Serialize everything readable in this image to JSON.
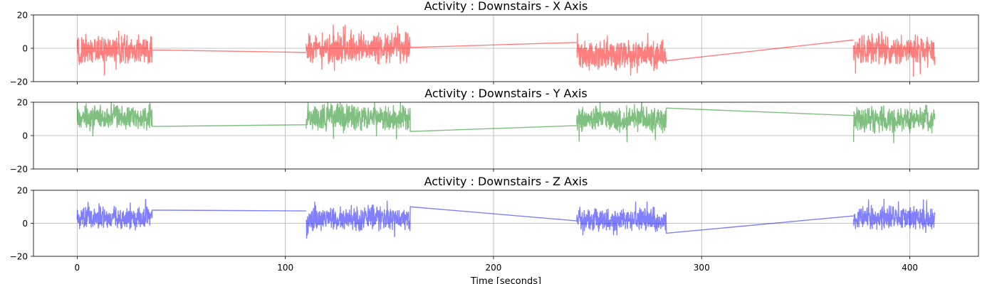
{
  "chart_data": [
    {
      "type": "line",
      "title": "Activity : Downstairs - X Axis",
      "series": [
        {
          "color": "#ff0000",
          "alpha": 0.5
        }
      ],
      "xlim": [
        -21,
        433
      ],
      "ylim": [
        -20,
        20
      ],
      "x_ticks": [
        0,
        100,
        200,
        300,
        400
      ],
      "y_ticks": [
        -20,
        0,
        20
      ],
      "y_tick_labels": [
        "−20",
        "0",
        "20"
      ],
      "grid": true,
      "segments": [
        {
          "x0": 0,
          "x1": 36,
          "center": -1,
          "amp": 10,
          "min": -16,
          "max": 13
        },
        {
          "x0": 110,
          "x1": 160,
          "center": 0,
          "amp": 10,
          "min": -15,
          "max": 17
        },
        {
          "x0": 240,
          "x1": 283,
          "center": -4,
          "amp": 10,
          "min": -19,
          "max": 12
        },
        {
          "x0": 373,
          "x1": 412,
          "center": -1,
          "amp": 10,
          "min": -19,
          "max": 15
        }
      ],
      "links": [
        {
          "x0": 36,
          "y0": -1,
          "x1": 110,
          "y1": -2.5
        },
        {
          "x0": 160,
          "y0": 0.5,
          "x1": 240,
          "y1": 3.5
        },
        {
          "x0": 283,
          "y0": -7.5,
          "x1": 373,
          "y1": 5
        }
      ]
    },
    {
      "type": "line",
      "title": "Activity : Downstairs - Y Axis",
      "series": [
        {
          "color": "#008000",
          "alpha": 0.5
        }
      ],
      "xlim": [
        -21,
        433
      ],
      "ylim": [
        -20,
        20
      ],
      "x_ticks": [
        0,
        100,
        200,
        300,
        400
      ],
      "y_ticks": [
        -20,
        0,
        20
      ],
      "y_tick_labels": [
        "−20",
        "0",
        "20"
      ],
      "grid": true,
      "segments": [
        {
          "x0": 0,
          "x1": 36,
          "center": 11,
          "amp": 9,
          "min": -4,
          "max": 20
        },
        {
          "x0": 110,
          "x1": 160,
          "center": 11,
          "amp": 9,
          "min": -5,
          "max": 20
        },
        {
          "x0": 240,
          "x1": 283,
          "center": 10,
          "amp": 9,
          "min": -4,
          "max": 20
        },
        {
          "x0": 373,
          "x1": 412,
          "center": 10,
          "amp": 9,
          "min": -8,
          "max": 20
        }
      ],
      "links": [
        {
          "x0": 36,
          "y0": 5.5,
          "x1": 110,
          "y1": 6.5
        },
        {
          "x0": 160,
          "y0": 2.5,
          "x1": 240,
          "y1": 6
        },
        {
          "x0": 283,
          "y0": 16.5,
          "x1": 373,
          "y1": 12
        }
      ]
    },
    {
      "type": "line",
      "title": "Activity : Downstairs - Z Axis",
      "series": [
        {
          "color": "#0000ff",
          "alpha": 0.5
        }
      ],
      "xlim": [
        -21,
        433
      ],
      "ylim": [
        -20,
        20
      ],
      "x_ticks": [
        0,
        100,
        200,
        300,
        400
      ],
      "x_tick_labels": [
        "0",
        "100",
        "200",
        "300",
        "400"
      ],
      "y_ticks": [
        -20,
        0,
        20
      ],
      "y_tick_labels": [
        "−20",
        "0",
        "20"
      ],
      "xlabel": "Time [seconds]",
      "grid": true,
      "segments": [
        {
          "x0": 0,
          "x1": 36,
          "center": 3,
          "amp": 8,
          "min": -13,
          "max": 18
        },
        {
          "x0": 110,
          "x1": 160,
          "center": 3,
          "amp": 8,
          "min": -12,
          "max": 15
        },
        {
          "x0": 240,
          "x1": 283,
          "center": 2,
          "amp": 8,
          "min": -7,
          "max": 13
        },
        {
          "x0": 373,
          "x1": 412,
          "center": 3,
          "amp": 8,
          "min": -7,
          "max": 17
        }
      ],
      "links": [
        {
          "x0": 36,
          "y0": 8,
          "x1": 110,
          "y1": 7.5
        },
        {
          "x0": 160,
          "y0": 10,
          "x1": 240,
          "y1": 1.5
        },
        {
          "x0": 283,
          "y0": -6,
          "x1": 373,
          "y1": 4.5
        }
      ]
    }
  ]
}
